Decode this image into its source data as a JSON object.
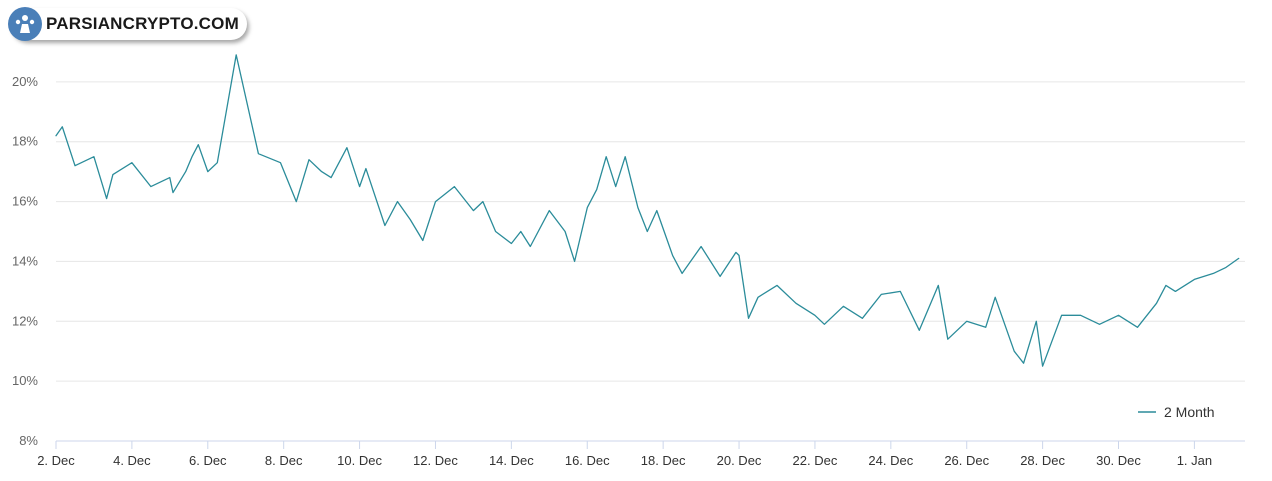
{
  "watermark": {
    "text": "PARSIANCRYPTO.COM"
  },
  "colors": {
    "series": "#2b8c9a",
    "grid": "#e6e6e6",
    "axis": "#ccd6eb"
  },
  "chart_data": {
    "type": "line",
    "title": "",
    "xlabel": "",
    "ylabel": "",
    "ylim": [
      8,
      22
    ],
    "xlim": [
      "2021-12-02",
      "2022-01-02T08:00"
    ],
    "y_ticks": [
      "8%",
      "10%",
      "12%",
      "14%",
      "16%",
      "18%",
      "20%"
    ],
    "x_ticks": [
      "2. Dec",
      "4. Dec",
      "6. Dec",
      "8. Dec",
      "10. Dec",
      "12. Dec",
      "14. Dec",
      "16. Dec",
      "18. Dec",
      "20. Dec",
      "22. Dec",
      "24. Dec",
      "26. Dec",
      "28. Dec",
      "30. Dec",
      "1. Jan"
    ],
    "grid": true,
    "legend": "bottom-right",
    "series": [
      {
        "name": "2 Month",
        "x": [
          "2021-12-02T00:00",
          "2021-12-02T04:00",
          "2021-12-02T12:00",
          "2021-12-03T00:00",
          "2021-12-03T08:00",
          "2021-12-03T12:00",
          "2021-12-04T00:00",
          "2021-12-04T12:00",
          "2021-12-05T00:00",
          "2021-12-05T02:00",
          "2021-12-05T10:00",
          "2021-12-05T14:00",
          "2021-12-05T18:00",
          "2021-12-06T00:00",
          "2021-12-06T06:00",
          "2021-12-06T10:00",
          "2021-12-06T18:00",
          "2021-12-07T08:00",
          "2021-12-07T22:00",
          "2021-12-08T08:00",
          "2021-12-08T16:00",
          "2021-12-09T00:00",
          "2021-12-09T06:00",
          "2021-12-09T16:00",
          "2021-12-10T00:00",
          "2021-12-10T04:00",
          "2021-12-10T16:00",
          "2021-12-11T00:00",
          "2021-12-11T08:00",
          "2021-12-11T16:00",
          "2021-12-12T00:00",
          "2021-12-12T12:00",
          "2021-12-13T00:00",
          "2021-12-13T06:00",
          "2021-12-13T14:00",
          "2021-12-14T00:00",
          "2021-12-14T06:00",
          "2021-12-14T12:00",
          "2021-12-15T00:00",
          "2021-12-15T10:00",
          "2021-12-15T16:00",
          "2021-12-16T00:00",
          "2021-12-16T06:00",
          "2021-12-16T12:00",
          "2021-12-16T18:00",
          "2021-12-17T00:00",
          "2021-12-17T08:00",
          "2021-12-17T14:00",
          "2021-12-17T20:00",
          "2021-12-18T00:00",
          "2021-12-18T06:00",
          "2021-12-18T12:00",
          "2021-12-19T00:00",
          "2021-12-19T12:00",
          "2021-12-19T22:00",
          "2021-12-20T00:00",
          "2021-12-20T06:00",
          "2021-12-20T12:00",
          "2021-12-21T00:00",
          "2021-12-21T12:00",
          "2021-12-22T00:00",
          "2021-12-22T06:00",
          "2021-12-22T18:00",
          "2021-12-23T06:00",
          "2021-12-23T18:00",
          "2021-12-24T06:00",
          "2021-12-24T18:00",
          "2021-12-25T06:00",
          "2021-12-25T12:00",
          "2021-12-26T00:00",
          "2021-12-26T12:00",
          "2021-12-26T18:00",
          "2021-12-27T06:00",
          "2021-12-27T12:00",
          "2021-12-27T20:00",
          "2021-12-28T00:00",
          "2021-12-28T12:00",
          "2021-12-29T00:00",
          "2021-12-29T12:00",
          "2021-12-30T00:00",
          "2021-12-30T12:00",
          "2021-12-31T00:00",
          "2021-12-31T06:00",
          "2021-12-31T12:00",
          "2022-01-01T00:00",
          "2022-01-01T12:00",
          "2022-01-01T20:00",
          "2022-01-02T04:00"
        ],
        "values": [
          18.2,
          18.5,
          17.2,
          17.5,
          16.1,
          16.9,
          17.3,
          16.5,
          16.8,
          16.3,
          17.0,
          17.5,
          17.9,
          17.0,
          17.3,
          18.5,
          20.9,
          17.6,
          17.3,
          16.0,
          17.4,
          17.0,
          16.8,
          17.8,
          16.5,
          17.1,
          15.2,
          16.0,
          15.4,
          14.7,
          16.0,
          16.5,
          15.7,
          16.0,
          15.0,
          14.6,
          15.0,
          14.5,
          15.7,
          15.0,
          14.0,
          15.8,
          16.4,
          17.5,
          16.5,
          17.5,
          15.8,
          15.0,
          15.7,
          15.1,
          14.2,
          13.6,
          14.5,
          13.5,
          14.3,
          14.2,
          12.1,
          12.8,
          13.2,
          12.6,
          12.2,
          11.9,
          12.5,
          12.1,
          12.9,
          13.0,
          11.7,
          13.2,
          11.4,
          12.0,
          11.8,
          12.8,
          11.0,
          10.6,
          12.0,
          10.5,
          12.2,
          12.2,
          11.9,
          12.2,
          11.8,
          12.6,
          13.2,
          13.0,
          13.4,
          13.6,
          13.8,
          14.1
        ]
      }
    ]
  }
}
